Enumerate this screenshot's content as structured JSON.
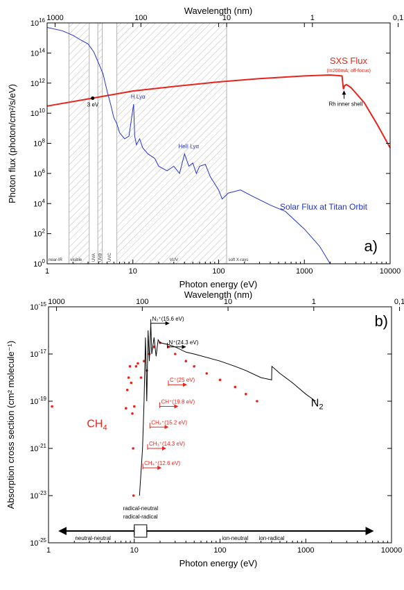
{
  "chart_data": [
    {
      "type": "line",
      "panel_label": "a)",
      "xlabel": "Photon energy (eV)",
      "x2label": "Wavelength (nm)",
      "ylabel": "Photon flux (photon/cm²/s/eV)",
      "xscale": "log",
      "yscale": "log",
      "xlim": [
        1,
        10000
      ],
      "ylim": [
        1,
        1e+16
      ],
      "x_ticks": [
        "1",
        "10",
        "100",
        "1000",
        "10000"
      ],
      "y_ticks_exp": [
        "0",
        "2",
        "4",
        "6",
        "8",
        "10",
        "12",
        "14",
        "16"
      ],
      "x2_ticks": [
        "1000",
        "100",
        "10",
        "1",
        "0,1"
      ],
      "series": [
        {
          "name": "SXS Flux",
          "subtitle": "(I=200mA; off-focus)",
          "color": "#e8231a",
          "points": [
            [
              1,
              30000000000.0
            ],
            [
              3.4,
              100000000000.0
            ],
            [
              10,
              300000000000.0
            ],
            [
              30,
              600000000000.0
            ],
            [
              100,
              1200000000000.0
            ],
            [
              300,
              2000000000000.0
            ],
            [
              1000,
              3000000000000.0
            ],
            [
              2000,
              3500000000000.0
            ],
            [
              2750,
              3000000000000.0
            ],
            [
              2850,
              400000000000.0
            ],
            [
              2950,
              700000000000.0
            ],
            [
              3100,
              800000000000.0
            ],
            [
              3500,
              500000000000.0
            ],
            [
              5000,
              50000000000.0
            ],
            [
              7000,
              2000000000.0
            ],
            [
              10000,
              50000000.0
            ]
          ]
        },
        {
          "name": "Solar Flux at Titan Orbit",
          "color": "#2233cc",
          "points": [
            [
              1,
              5000000000000000.0
            ],
            [
              1.5,
              3000000000000000.0
            ],
            [
              2,
              1500000000000000.0
            ],
            [
              2.5,
              700000000000000.0
            ],
            [
              3,
              400000000000000.0
            ],
            [
              3.5,
              120000000000000.0
            ],
            [
              4,
              20000000000000.0
            ],
            [
              4.5,
              4000000000000.0
            ],
            [
              5,
              300000000000.0
            ],
            [
              5.5,
              40000000000.0
            ],
            [
              6,
              5000000000.0
            ],
            [
              6.5,
              2000000000.0
            ],
            [
              7,
              500000000.0
            ],
            [
              8,
              200000000.0
            ],
            [
              9,
              300000000.0
            ],
            [
              10.2,
              40000000000.0
            ],
            [
              10.5,
              300000000.0
            ],
            [
              11,
              80000000.0
            ],
            [
              12,
              200000000.0
            ],
            [
              13,
              50000000.0
            ],
            [
              15,
              20000000.0
            ],
            [
              18,
              10000000.0
            ],
            [
              20,
              3000000.0
            ],
            [
              25,
              1500000.0
            ],
            [
              30,
              3000000.0
            ],
            [
              35,
              1000000.0
            ],
            [
              40,
              20000000.0
            ],
            [
              45,
              3000000.0
            ],
            [
              50,
              5000000.0
            ],
            [
              55,
              1000000.0
            ],
            [
              60,
              3000000.0
            ],
            [
              70,
              4000000.0
            ],
            [
              80,
              600000.0
            ],
            [
              100,
              80000.0
            ],
            [
              110,
              20000.0
            ],
            [
              130,
              50000.0
            ],
            [
              180,
              80000.0
            ],
            [
              250,
              30000.0
            ],
            [
              400,
              8000.0
            ],
            [
              600,
              3000.0
            ],
            [
              1000,
              200
            ],
            [
              1500,
              15
            ],
            [
              2000,
              1
            ]
          ]
        }
      ],
      "bands": [
        {
          "label": "near-IR",
          "from": 1,
          "to": 1.8,
          "hatched": false
        },
        {
          "label": "visible",
          "from": 1.8,
          "to": 3.1,
          "hatched": true
        },
        {
          "label": "UVA",
          "from": 3.1,
          "to": 3.9,
          "hatched": false
        },
        {
          "label": "UVB",
          "from": 3.9,
          "to": 4.4,
          "hatched": true
        },
        {
          "label": "UVC",
          "from": 4.4,
          "to": 6.5,
          "hatched": false
        },
        {
          "label": "VUV",
          "from": 6.5,
          "to": 124,
          "hatched": true
        },
        {
          "label": "soft X-rays",
          "from": 124,
          "to": 10000,
          "hatched": false
        }
      ],
      "annotations": [
        {
          "text": "3 eV",
          "x": 3.4,
          "y": 100000000000.0
        },
        {
          "text": "H Lyα",
          "x": 10.2,
          "y": 40000000000.0
        },
        {
          "text": "HeII Lyα",
          "x": 40.8,
          "y": 20000000.0
        },
        {
          "text": "Rh inner shell",
          "x": 2900,
          "y": 400000000000.0
        }
      ]
    },
    {
      "type": "scatter",
      "panel_label": "b)",
      "xlabel": "Photon energy (eV)",
      "x2label": "Wavelength (nm)",
      "ylabel": "Absorption cross section (cm² molecule⁻¹)",
      "xscale": "log",
      "yscale": "log",
      "xlim": [
        1,
        10000
      ],
      "ylim": [
        1e-25,
        1e-15
      ],
      "x_ticks": [
        "1",
        "10",
        "100",
        "1000",
        "10000"
      ],
      "y_ticks_exp": [
        "-25",
        "-23",
        "-21",
        "-19",
        "-17",
        "-15"
      ],
      "x2_ticks": [
        "1000",
        "100",
        "10",
        "1",
        "0,1"
      ],
      "series": [
        {
          "name": "CH4",
          "color": "#e8231a",
          "style": "dots",
          "points": [
            [
              1.1,
              6e-20
            ],
            [
              8,
              5e-20
            ],
            [
              8.3,
              3e-19
            ],
            [
              8.6,
              1e-18
            ],
            [
              8.9,
              3e-18
            ],
            [
              9.2,
              6e-19
            ],
            [
              9.5,
              3e-20
            ],
            [
              9.7,
              1e-21
            ],
            [
              9.8,
              1e-23
            ],
            [
              10,
              6e-20
            ],
            [
              10.5,
              3e-18
            ],
            [
              11,
              4e-18
            ],
            [
              12,
              1e-18
            ],
            [
              13,
              5e-18
            ],
            [
              14,
              2e-18
            ],
            [
              15,
              1e-17
            ],
            [
              17,
              2e-17
            ],
            [
              20,
              3e-17
            ],
            [
              25,
              2e-17
            ],
            [
              30,
              1e-17
            ],
            [
              40,
              5e-18
            ],
            [
              50,
              3e-18
            ],
            [
              70,
              1.5e-18
            ],
            [
              100,
              8e-19
            ],
            [
              150,
              4e-19
            ],
            [
              200,
              2e-19
            ],
            [
              270,
              1e-19
            ]
          ]
        },
        {
          "name": "N2",
          "color": "#000000",
          "style": "line",
          "points": [
            [
              11.5,
              1e-23
            ],
            [
              12.5,
              1e-21
            ],
            [
              13,
              1e-19
            ],
            [
              13.5,
              5e-17
            ],
            [
              14,
              1e-19
            ],
            [
              14.5,
              1e-16
            ],
            [
              15,
              5e-18
            ],
            [
              15.6,
              2e-16
            ],
            [
              16,
              1e-17
            ],
            [
              17,
              5e-17
            ],
            [
              18,
              8e-18
            ],
            [
              19,
              4e-17
            ],
            [
              20,
              3e-17
            ],
            [
              25,
              2.5e-17
            ],
            [
              30,
              2e-17
            ],
            [
              40,
              1.2e-17
            ],
            [
              50,
              1e-17
            ],
            [
              100,
              5e-18
            ],
            [
              150,
              3e-18
            ],
            [
              200,
              2e-18
            ],
            [
              300,
              1e-18
            ],
            [
              400,
              8e-19
            ],
            [
              402,
              3e-18
            ],
            [
              500,
              1.5e-18
            ],
            [
              700,
              6e-19
            ],
            [
              1000,
              2e-19
            ],
            [
              1300,
              1e-19
            ]
          ]
        }
      ],
      "thresholds": [
        {
          "label": "N₂⁺(15.6 eV)",
          "x": 15.6,
          "y": 2e-16,
          "color": "#000000"
        },
        {
          "label": "N⁺(24.3 eV)",
          "x": 24.3,
          "y": 2e-17,
          "color": "#000000"
        },
        {
          "label": "C⁺(25 eV)",
          "x": 25,
          "y": 5e-19,
          "color": "#e8231a"
        },
        {
          "label": "CH⁺(19.8 eV)",
          "x": 19.8,
          "y": 6e-20,
          "color": "#e8231a"
        },
        {
          "label": "CH₂⁺(15.2 eV)",
          "x": 15.2,
          "y": 8e-21,
          "color": "#e8231a"
        },
        {
          "label": "CH₃⁺(14.3 eV)",
          "x": 14.3,
          "y": 1e-21,
          "color": "#e8231a"
        },
        {
          "label": "CH₄⁺(12.6 eV)",
          "x": 12.6,
          "y": 1.5e-22,
          "color": "#e8231a"
        }
      ],
      "series_labels": [
        {
          "text": "CH4",
          "x": 2.8,
          "y": 8e-21
        },
        {
          "text": "N2",
          "x": 1150,
          "y": 6e-20
        }
      ],
      "regimes": [
        {
          "label": "neutral-neutral",
          "from": 1,
          "to": 10
        },
        {
          "label": "radical-neutral",
          "from": 10,
          "to": 14
        },
        {
          "label": "radical-radical",
          "from": 10,
          "to": 14
        },
        {
          "label": "ion-neutral",
          "from": 14,
          "to": 6000
        },
        {
          "label": "ion-radical",
          "from": 14,
          "to": 6000
        }
      ]
    }
  ]
}
